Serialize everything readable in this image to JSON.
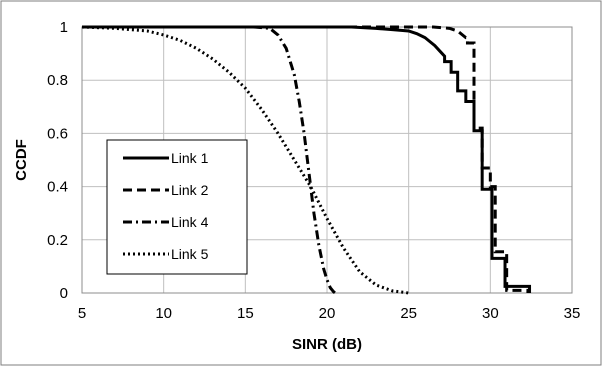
{
  "chart_data": {
    "type": "line",
    "title": "",
    "xlabel": "SINR (dB)",
    "ylabel": "CCDF",
    "xlim": [
      5,
      35
    ],
    "ylim": [
      0,
      1
    ],
    "xticks": [
      "5",
      "10",
      "15",
      "20",
      "25",
      "30",
      "35"
    ],
    "yticks": [
      "0",
      "0.2",
      "0.4",
      "0.6",
      "0.8",
      "1"
    ],
    "grid": true,
    "legend_position": "left-center",
    "series": [
      {
        "name": "Link 1",
        "line_style": "solid",
        "color": "#000000",
        "x": [
          5,
          21.5,
          23,
          24,
          25,
          25.5,
          26,
          26.3,
          26.6,
          26.9,
          27.2,
          27.2,
          27.6,
          27.6,
          28.0,
          28.0,
          28.5,
          28.5,
          29.0,
          29.0,
          29.5,
          29.5,
          30.1,
          30.1,
          30.9,
          30.9,
          32.4,
          32.4
        ],
        "y": [
          1,
          1,
          0.995,
          0.99,
          0.985,
          0.975,
          0.96,
          0.945,
          0.93,
          0.91,
          0.89,
          0.87,
          0.87,
          0.83,
          0.83,
          0.76,
          0.76,
          0.72,
          0.72,
          0.61,
          0.61,
          0.39,
          0.39,
          0.13,
          0.13,
          0.025,
          0.025,
          0
        ]
      },
      {
        "name": "Link 2",
        "line_style": "dashed",
        "color": "#000000",
        "x": [
          5,
          26.5,
          27.5,
          28.0,
          28.3,
          28.5,
          28.6,
          28.6,
          29.0,
          29.0,
          29.5,
          29.5,
          30.0,
          30.0,
          30.3,
          30.3,
          31.0,
          31.0,
          32.3,
          32.3
        ],
        "y": [
          1,
          1,
          0.995,
          0.985,
          0.97,
          0.96,
          0.96,
          0.94,
          0.94,
          0.62,
          0.62,
          0.47,
          0.47,
          0.4,
          0.4,
          0.155,
          0.155,
          0.01,
          0.01,
          0
        ]
      },
      {
        "name": "Link 4",
        "line_style": "dash-dot",
        "color": "#000000",
        "x": [
          5,
          15.5,
          16.5,
          17.0,
          17.5,
          18.0,
          18.3,
          18.6,
          18.9,
          19.2,
          19.5,
          19.8,
          20.0,
          20.2,
          20.4,
          20.5
        ],
        "y": [
          1,
          1,
          0.995,
          0.97,
          0.92,
          0.82,
          0.72,
          0.6,
          0.45,
          0.3,
          0.18,
          0.09,
          0.05,
          0.02,
          0.005,
          0
        ]
      },
      {
        "name": "Link 5",
        "line_style": "dotted",
        "color": "#000000",
        "x": [
          5,
          7,
          9,
          10,
          11,
          12,
          13,
          14,
          15,
          16,
          17,
          18,
          19,
          20,
          21,
          22,
          23,
          24,
          25
        ],
        "y": [
          1,
          0.995,
          0.985,
          0.97,
          0.95,
          0.92,
          0.88,
          0.83,
          0.77,
          0.69,
          0.6,
          0.5,
          0.4,
          0.28,
          0.17,
          0.08,
          0.03,
          0.008,
          0
        ]
      }
    ]
  }
}
